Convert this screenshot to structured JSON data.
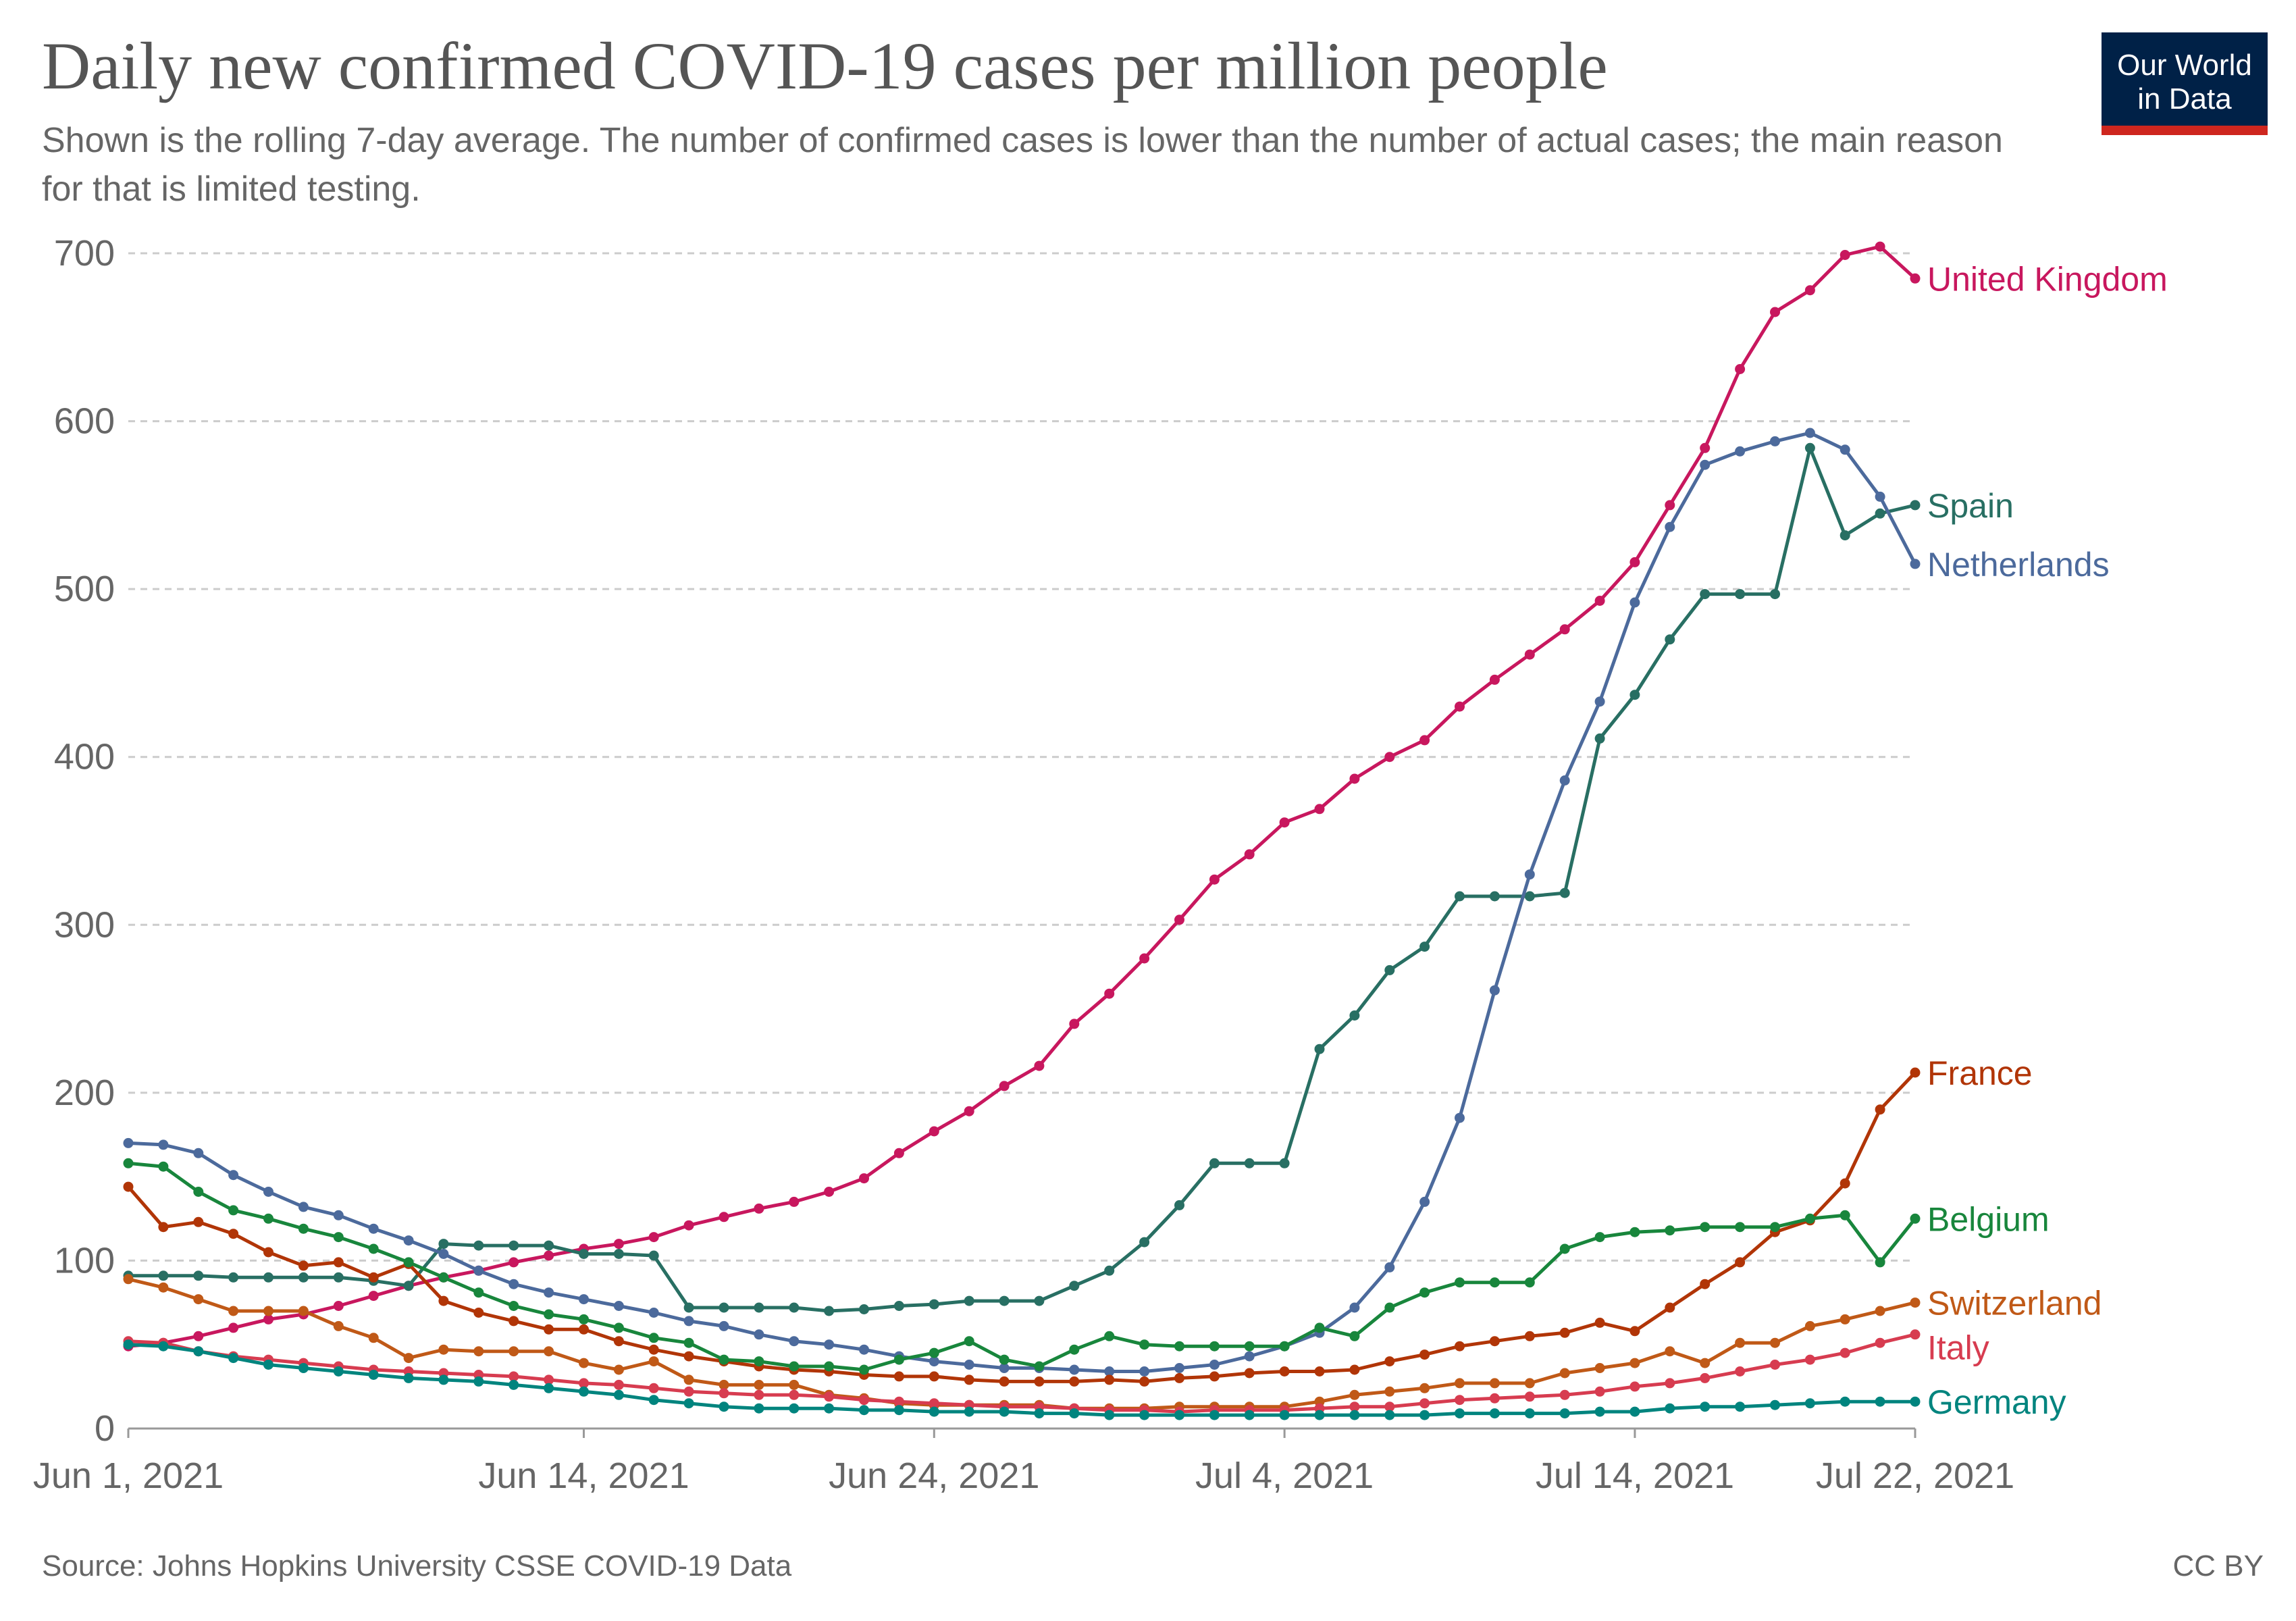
{
  "header": {
    "title": "Daily new confirmed COVID-19 cases per million people",
    "subtitle": "Shown is the rolling 7-day average. The number of confirmed cases is lower than the number of actual cases; the main reason for that is limited testing."
  },
  "logo": {
    "text": "Our World\nin Data",
    "bg_color": "#002147",
    "bar_color": "#ce261e"
  },
  "footer": {
    "source": "Source: Johns Hopkins University CSSE COVID-19 Data",
    "license": "CC BY"
  },
  "chart_data": {
    "type": "line",
    "title": "Daily new confirmed COVID-19 cases per million people",
    "xlabel": "",
    "ylabel": "",
    "x": [
      "2021-06-01",
      "2021-06-02",
      "2021-06-03",
      "2021-06-04",
      "2021-06-05",
      "2021-06-06",
      "2021-06-07",
      "2021-06-08",
      "2021-06-09",
      "2021-06-10",
      "2021-06-11",
      "2021-06-12",
      "2021-06-13",
      "2021-06-14",
      "2021-06-15",
      "2021-06-16",
      "2021-06-17",
      "2021-06-18",
      "2021-06-19",
      "2021-06-20",
      "2021-06-21",
      "2021-06-22",
      "2021-06-23",
      "2021-06-24",
      "2021-06-25",
      "2021-06-26",
      "2021-06-27",
      "2021-06-28",
      "2021-06-29",
      "2021-06-30",
      "2021-07-01",
      "2021-07-02",
      "2021-07-03",
      "2021-07-04",
      "2021-07-05",
      "2021-07-06",
      "2021-07-07",
      "2021-07-08",
      "2021-07-09",
      "2021-07-10",
      "2021-07-11",
      "2021-07-12",
      "2021-07-13",
      "2021-07-14",
      "2021-07-15",
      "2021-07-16",
      "2021-07-17",
      "2021-07-18",
      "2021-07-19",
      "2021-07-20",
      "2021-07-21",
      "2021-07-22"
    ],
    "x_ticks": [
      {
        "date": "2021-06-01",
        "label": "Jun 1, 2021"
      },
      {
        "date": "2021-06-14",
        "label": "Jun 14, 2021"
      },
      {
        "date": "2021-06-24",
        "label": "Jun 24, 2021"
      },
      {
        "date": "2021-07-04",
        "label": "Jul 4, 2021"
      },
      {
        "date": "2021-07-14",
        "label": "Jul 14, 2021"
      },
      {
        "date": "2021-07-22",
        "label": "Jul 22, 2021"
      }
    ],
    "y_ticks": [
      0,
      100,
      200,
      300,
      400,
      500,
      600,
      700
    ],
    "ylim": [
      0,
      700
    ],
    "grid": "horizontal dashed",
    "legend": "end-of-line labels",
    "series": [
      {
        "name": "United Kingdom",
        "color": "#c8175e",
        "values": [
          49,
          51,
          55,
          60,
          65,
          68,
          73,
          79,
          85,
          90,
          94,
          99,
          103,
          107,
          110,
          114,
          121,
          126,
          131,
          135,
          141,
          149,
          164,
          177,
          189,
          204,
          216,
          241,
          259,
          280,
          303,
          327,
          342,
          361,
          369,
          387,
          400,
          410,
          430,
          446,
          461,
          476,
          493,
          516,
          550,
          584,
          631,
          665,
          678,
          699,
          704,
          685
        ]
      },
      {
        "name": "Spain",
        "color": "#286f63",
        "values": [
          91,
          91,
          91,
          90,
          90,
          90,
          90,
          88,
          85,
          110,
          109,
          109,
          109,
          104,
          104,
          103,
          72,
          72,
          72,
          72,
          70,
          71,
          73,
          74,
          76,
          76,
          76,
          85,
          94,
          111,
          133,
          158,
          158,
          158,
          226,
          246,
          273,
          287,
          317,
          317,
          317,
          319,
          411,
          437,
          470,
          497,
          497,
          497,
          584,
          532,
          545,
          550
        ]
      },
      {
        "name": "Netherlands",
        "color": "#4c6a9c",
        "values": [
          170,
          169,
          164,
          151,
          141,
          132,
          127,
          119,
          112,
          104,
          94,
          86,
          81,
          77,
          73,
          69,
          64,
          61,
          56,
          52,
          50,
          47,
          43,
          40,
          38,
          36,
          36,
          35,
          34,
          34,
          36,
          38,
          43,
          49,
          57,
          72,
          96,
          135,
          185,
          261,
          330,
          386,
          433,
          492,
          537,
          574,
          582,
          588,
          593,
          583,
          555,
          515
        ]
      },
      {
        "name": "France",
        "color": "#b13507",
        "values": [
          144,
          120,
          123,
          116,
          105,
          97,
          99,
          90,
          98,
          76,
          69,
          64,
          59,
          59,
          52,
          47,
          43,
          40,
          37,
          35,
          34,
          32,
          31,
          31,
          29,
          28,
          28,
          28,
          29,
          28,
          30,
          31,
          33,
          34,
          34,
          35,
          40,
          44,
          49,
          52,
          55,
          57,
          63,
          58,
          72,
          86,
          99,
          117,
          124,
          146,
          190,
          212
        ]
      },
      {
        "name": "Belgium",
        "color": "#18863c",
        "values": [
          158,
          156,
          141,
          130,
          125,
          119,
          114,
          107,
          99,
          90,
          81,
          73,
          68,
          65,
          60,
          54,
          51,
          41,
          40,
          37,
          37,
          35,
          41,
          45,
          52,
          41,
          37,
          47,
          55,
          50,
          49,
          49,
          49,
          49,
          60,
          55,
          72,
          81,
          87,
          87,
          87,
          107,
          114,
          117,
          118,
          120,
          120,
          120,
          125,
          127,
          99,
          125
        ]
      },
      {
        "name": "Switzerland",
        "color": "#c05917",
        "values": [
          89,
          84,
          77,
          70,
          70,
          70,
          61,
          54,
          42,
          47,
          46,
          46,
          46,
          39,
          35,
          40,
          29,
          26,
          26,
          26,
          20,
          18,
          15,
          14,
          14,
          14,
          14,
          12,
          12,
          12,
          13,
          13,
          13,
          13,
          16,
          20,
          22,
          24,
          27,
          27,
          27,
          33,
          36,
          39,
          46,
          39,
          51,
          51,
          61,
          65,
          70,
          75
        ]
      },
      {
        "name": "Italy",
        "color": "#d73c50",
        "values": [
          52,
          51,
          46,
          43,
          41,
          39,
          37,
          35,
          34,
          33,
          32,
          31,
          29,
          27,
          26,
          24,
          22,
          21,
          20,
          20,
          19,
          17,
          16,
          15,
          14,
          13,
          13,
          12,
          11,
          11,
          10,
          11,
          11,
          11,
          12,
          13,
          13,
          15,
          17,
          18,
          19,
          20,
          22,
          25,
          27,
          30,
          34,
          38,
          41,
          45,
          51,
          56
        ]
      },
      {
        "name": "Germany",
        "color": "#00847e",
        "values": [
          50,
          49,
          46,
          42,
          38,
          36,
          34,
          32,
          30,
          29,
          28,
          26,
          24,
          22,
          20,
          17,
          15,
          13,
          12,
          12,
          12,
          11,
          11,
          10,
          10,
          10,
          9,
          9,
          8,
          8,
          8,
          8,
          8,
          8,
          8,
          8,
          8,
          8,
          9,
          9,
          9,
          9,
          10,
          10,
          12,
          13,
          13,
          14,
          15,
          16,
          16,
          16
        ]
      }
    ]
  }
}
